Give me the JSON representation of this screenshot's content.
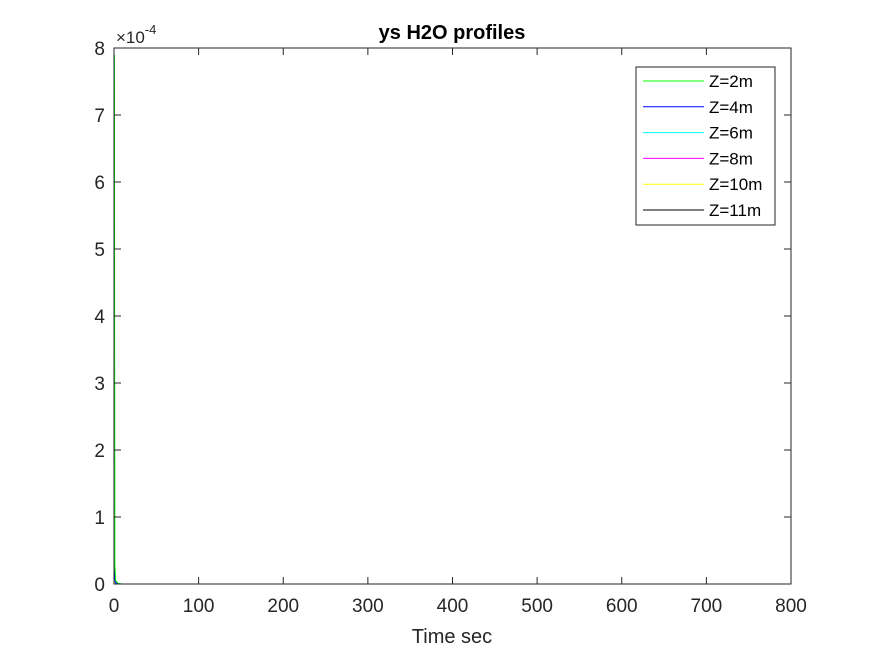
{
  "chart_data": {
    "type": "line",
    "title": "ys H2O profiles",
    "xlabel": "Time sec",
    "ylabel": "",
    "xlim": [
      0,
      800
    ],
    "ylim": [
      0,
      0.0008
    ],
    "x_ticks": [
      0,
      100,
      200,
      300,
      400,
      500,
      600,
      700,
      800
    ],
    "x_tick_labels": [
      "0",
      "100",
      "200",
      "300",
      "400",
      "500",
      "600",
      "700",
      "800"
    ],
    "y_ticks": [
      0,
      1,
      2,
      3,
      4,
      5,
      6,
      7,
      8
    ],
    "y_tick_labels": [
      "0",
      "1",
      "2",
      "3",
      "4",
      "5",
      "6",
      "7",
      "8"
    ],
    "y_exponent": {
      "base": "×10",
      "power": "-4"
    },
    "grid": false,
    "legend_position": "top-right",
    "series": [
      {
        "name": "Z=2m",
        "color": "#00ff00",
        "x": [
          0,
          0.5,
          1,
          2,
          5,
          10,
          50,
          800
        ],
        "y": [
          0.00078,
          0.00079,
          3e-05,
          5e-06,
          1e-06,
          0,
          0,
          0
        ]
      },
      {
        "name": "Z=4m",
        "color": "#0000ff",
        "x": [
          0,
          1,
          2,
          5,
          10,
          50,
          800
        ],
        "y": [
          5e-05,
          1e-05,
          2e-06,
          0,
          0,
          0,
          0
        ]
      },
      {
        "name": "Z=6m",
        "color": "#00ffff",
        "x": [
          0,
          1,
          2,
          5,
          10,
          50,
          800
        ],
        "y": [
          4e-05,
          8e-06,
          1e-06,
          0,
          0,
          0,
          0
        ]
      },
      {
        "name": "Z=8m",
        "color": "#ff00ff",
        "x": [
          0,
          1,
          2,
          5,
          10,
          50,
          800
        ],
        "y": [
          3e-05,
          5e-06,
          1e-06,
          0,
          0,
          0,
          0
        ]
      },
      {
        "name": "Z=10m",
        "color": "#ffff00",
        "x": [
          0,
          1,
          2,
          5,
          10,
          50,
          800
        ],
        "y": [
          2e-05,
          4e-06,
          0,
          0,
          0,
          0,
          0
        ]
      },
      {
        "name": "Z=11m",
        "color": "#000000",
        "x": [
          0,
          1,
          2,
          5,
          10,
          50,
          800
        ],
        "y": [
          5.5e-05,
          8e-06,
          1e-06,
          0,
          0,
          0,
          0
        ]
      }
    ]
  }
}
